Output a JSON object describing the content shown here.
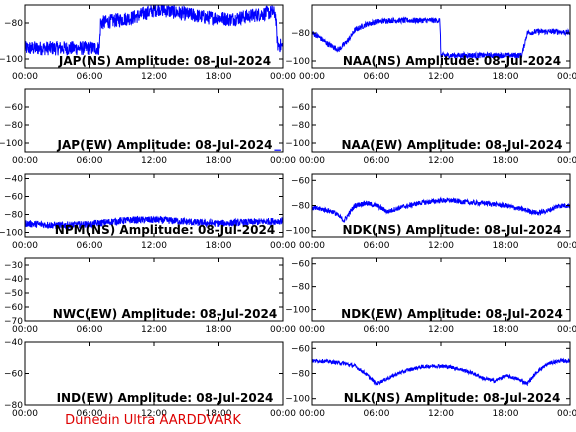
{
  "footer": "Dunedin Ultra AARDDVARK",
  "colors": {
    "trace": "#0000ff",
    "footer": "#dd0000",
    "axes": "#000000"
  },
  "chart_data": [
    {
      "type": "line",
      "title": "JAP(NS) Amplitude: 08-Jul-2024",
      "ylim": [
        -105,
        -70
      ],
      "yticks": [
        -100,
        -80
      ],
      "xlim_hours": [
        0,
        24
      ],
      "xtick_labels": [
        "00:00",
        "06:00",
        "12:00",
        "18:00",
        "00:00"
      ],
      "noise_band": 4,
      "series": [
        {
          "x": [
            0,
            4,
            6.9,
            7,
            8,
            9,
            10,
            11,
            12,
            12.5,
            13,
            14,
            15,
            16,
            17,
            18,
            19,
            20,
            21,
            22,
            23,
            23.3,
            23.5,
            24
          ],
          "y": [
            -94,
            -94,
            -94,
            -80,
            -79,
            -78,
            -77,
            -75,
            -73,
            -72,
            -73,
            -74,
            -75,
            -76,
            -77,
            -77,
            -78,
            -77,
            -76,
            -75,
            -74,
            -75,
            -92,
            -93
          ]
        }
      ]
    },
    {
      "type": "line",
      "title": "NAA(NS) Amplitude: 08-Jul-2024",
      "ylim": [
        -105,
        -60
      ],
      "yticks": [
        -100,
        -80
      ],
      "xlim_hours": [
        0,
        24
      ],
      "xtick_labels": [
        "00:00",
        "06:00",
        "12:00",
        "18:00",
        "00:00"
      ],
      "noise_band": 2,
      "series": [
        {
          "x": [
            0,
            0.5,
            1.5,
            2.5,
            3,
            3.5,
            4,
            5,
            6,
            7,
            8,
            9,
            10,
            11,
            11.9,
            12,
            14,
            16,
            18,
            19.5,
            20,
            21,
            22,
            23,
            24
          ],
          "y": [
            -80,
            -82,
            -88,
            -92,
            -88,
            -84,
            -78,
            -74,
            -72,
            -71,
            -71,
            -71,
            -71,
            -71,
            -71,
            -96,
            -96,
            -96,
            -96,
            -96,
            -80,
            -79,
            -79,
            -79,
            -80
          ]
        }
      ]
    },
    {
      "type": "line",
      "title": "JAP(EW) Amplitude: 08-Jul-2024",
      "ylim": [
        -110,
        -40
      ],
      "yticks": [
        -100,
        -80,
        -60
      ],
      "xlim_hours": [
        0,
        24
      ],
      "xtick_labels": [
        "00:00",
        "06:00",
        "12:00",
        "18:00",
        "00:00"
      ],
      "noise_band": 0,
      "series": [
        {
          "x": [
            23.2,
            23.8
          ],
          "y": [
            -108,
            -108
          ]
        }
      ]
    },
    {
      "type": "line",
      "title": "NAA(EW) Amplitude: 08-Jul-2024",
      "ylim": [
        -110,
        -40
      ],
      "yticks": [
        -100,
        -80,
        -60
      ],
      "xlim_hours": [
        0,
        24
      ],
      "xtick_labels": [
        "00:00",
        "06:00",
        "12:00",
        "18:00",
        "00:00"
      ],
      "noise_band": 0,
      "series": [
        {
          "x": [],
          "y": []
        }
      ]
    },
    {
      "type": "line",
      "title": "NPM(NS) Amplitude: 08-Jul-2024",
      "ylim": [
        -105,
        -35
      ],
      "yticks": [
        -100,
        -80,
        -60,
        -40
      ],
      "xlim_hours": [
        0,
        24
      ],
      "xtick_labels": [
        "00:00",
        "06:00",
        "12:00",
        "18:00",
        "00:00"
      ],
      "noise_band": 4,
      "series": [
        {
          "x": [
            0,
            3,
            6,
            8,
            10,
            12,
            14,
            16,
            18,
            20,
            22,
            24
          ],
          "y": [
            -90,
            -92,
            -91,
            -88,
            -86,
            -86,
            -87,
            -89,
            -90,
            -89,
            -88,
            -87
          ]
        }
      ]
    },
    {
      "type": "line",
      "title": "NDK(NS) Amplitude: 08-Jul-2024",
      "ylim": [
        -105,
        -55
      ],
      "yticks": [
        -100,
        -80,
        -60
      ],
      "xlim_hours": [
        0,
        24
      ],
      "xtick_labels": [
        "00:00",
        "06:00",
        "12:00",
        "18:00",
        "00:00"
      ],
      "noise_band": 2,
      "series": [
        {
          "x": [
            0,
            1,
            2,
            3,
            3.5,
            4,
            5,
            6,
            7,
            8,
            9,
            10,
            11,
            12,
            13,
            14,
            15,
            16,
            17,
            18,
            19,
            20,
            21,
            22,
            23,
            24
          ],
          "y": [
            -82,
            -83,
            -85,
            -92,
            -86,
            -80,
            -78,
            -80,
            -85,
            -82,
            -80,
            -78,
            -77,
            -76,
            -76,
            -77,
            -78,
            -78,
            -79,
            -80,
            -82,
            -84,
            -86,
            -84,
            -80,
            -80
          ]
        }
      ]
    },
    {
      "type": "line",
      "title": "NWC(EW) Amplitude: 08-Jul-2024",
      "ylim": [
        -70,
        -25
      ],
      "yticks": [
        -70,
        -60,
        -50,
        -40,
        -30
      ],
      "xlim_hours": [
        0,
        24
      ],
      "xtick_labels": [
        "00:00",
        "06:00",
        "12:00",
        "18:00",
        "00:00"
      ],
      "noise_band": 0,
      "series": [
        {
          "x": [],
          "y": []
        }
      ]
    },
    {
      "type": "line",
      "title": "NDK(EW) Amplitude: 08-Jul-2024",
      "ylim": [
        -110,
        -55
      ],
      "yticks": [
        -100,
        -80,
        -60
      ],
      "xlim_hours": [
        0,
        24
      ],
      "xtick_labels": [
        "00:00",
        "06:00",
        "12:00",
        "18:00",
        "00:00"
      ],
      "noise_band": 0,
      "series": [
        {
          "x": [],
          "y": []
        }
      ]
    },
    {
      "type": "line",
      "title": "IND(EW) Amplitude: 08-Jul-2024",
      "ylim": [
        -80,
        -40
      ],
      "yticks": [
        -80,
        -60,
        -40
      ],
      "xlim_hours": [
        0,
        24
      ],
      "xtick_labels": [
        "00:00",
        "06:00",
        "12:00",
        "18:00",
        "00:00"
      ],
      "noise_band": 0,
      "series": [
        {
          "x": [],
          "y": []
        }
      ]
    },
    {
      "type": "line",
      "title": "NLK(NS) Amplitude: 08-Jul-2024",
      "ylim": [
        -105,
        -55
      ],
      "yticks": [
        -100,
        -80,
        -60
      ],
      "xlim_hours": [
        0,
        24
      ],
      "xtick_labels": [
        "00:00",
        "06:00",
        "12:00",
        "18:00",
        "00:00"
      ],
      "noise_band": 1.5,
      "series": [
        {
          "x": [
            0,
            1,
            2,
            3,
            4,
            5,
            6,
            7,
            8,
            9,
            10,
            11,
            12,
            13,
            14,
            15,
            16,
            17,
            18,
            19,
            20,
            21,
            22,
            23,
            24
          ],
          "y": [
            -70,
            -70,
            -71,
            -72,
            -74,
            -80,
            -88,
            -84,
            -80,
            -77,
            -75,
            -74,
            -74,
            -75,
            -77,
            -80,
            -84,
            -86,
            -82,
            -84,
            -88,
            -78,
            -72,
            -70,
            -70
          ]
        }
      ]
    }
  ]
}
